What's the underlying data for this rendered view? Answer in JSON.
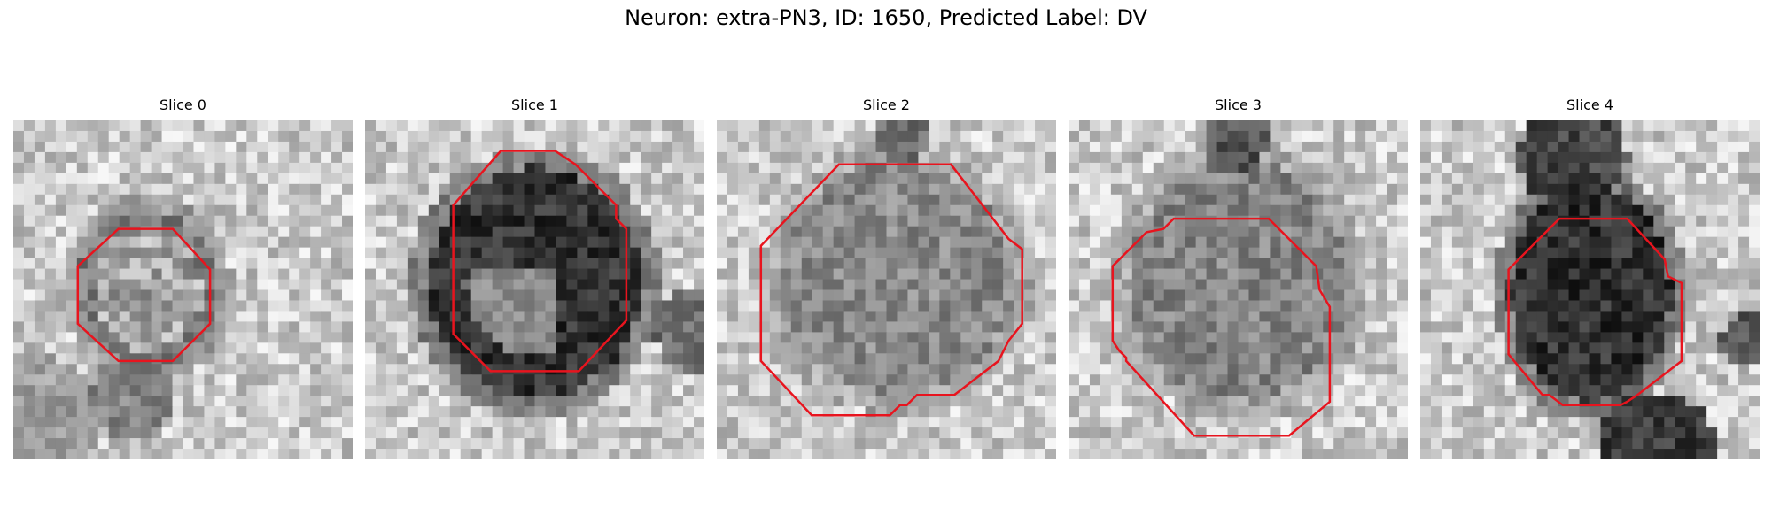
{
  "figure": {
    "suptitle": "Neuron: extra-PN3, ID: 1650, Predicted Label: DV",
    "contour_color": "#e8141e"
  },
  "slices": [
    {
      "title": "Slice 0"
    },
    {
      "title": "Slice 1"
    },
    {
      "title": "Slice 2"
    },
    {
      "title": "Slice 3"
    },
    {
      "title": "Slice 4"
    }
  ]
}
